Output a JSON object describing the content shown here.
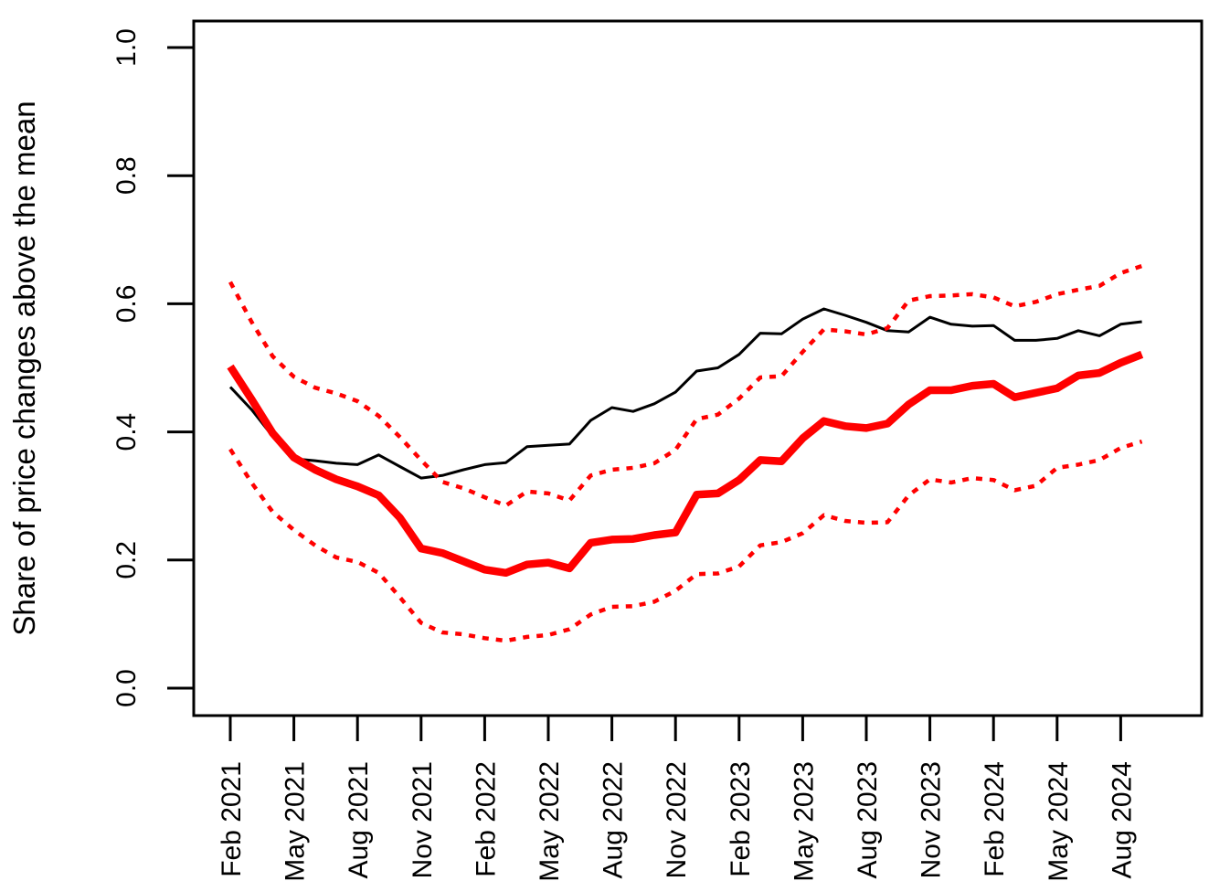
{
  "chart_data": {
    "type": "line",
    "title": "",
    "xlabel": "",
    "ylabel": "Share of price changes above the mean",
    "ylim": [
      0.0,
      1.0
    ],
    "grid": false,
    "legend": "none",
    "background_color": "#ffffff",
    "axis_color": "#000000",
    "x": [
      "Feb 2021",
      "Mar 2021",
      "Apr 2021",
      "May 2021",
      "Jun 2021",
      "Jul 2021",
      "Aug 2021",
      "Sep 2021",
      "Oct 2021",
      "Nov 2021",
      "Dec 2021",
      "Jan 2022",
      "Feb 2022",
      "Mar 2022",
      "Apr 2022",
      "May 2022",
      "Jun 2022",
      "Jul 2022",
      "Aug 2022",
      "Sep 2022",
      "Oct 2022",
      "Nov 2022",
      "Dec 2022",
      "Jan 2023",
      "Feb 2023",
      "Mar 2023",
      "Apr 2023",
      "May 2023",
      "Jun 2023",
      "Jul 2023",
      "Aug 2023",
      "Sep 2023",
      "Oct 2023",
      "Nov 2023",
      "Dec 2023",
      "Jan 2024",
      "Feb 2024",
      "Mar 2024",
      "Apr 2024",
      "May 2024",
      "Jun 2024",
      "Jul 2024",
      "Aug 2024",
      "Sep 2024"
    ],
    "x_tick_labels": [
      "Feb 2021",
      "May 2021",
      "Aug 2021",
      "Nov 2021",
      "Feb 2022",
      "May 2022",
      "Aug 2022",
      "Nov 2022",
      "Feb 2023",
      "May 2023",
      "Aug 2023",
      "Nov 2023",
      "Feb 2024",
      "May 2024",
      "Aug 2024"
    ],
    "x_tick_indices": [
      0,
      3,
      6,
      9,
      12,
      15,
      18,
      21,
      24,
      27,
      30,
      33,
      36,
      39,
      42
    ],
    "y_ticks": [
      {
        "value": 0.0,
        "label": "0.0"
      },
      {
        "value": 0.2,
        "label": "0.2"
      },
      {
        "value": 0.4,
        "label": "0.4"
      },
      {
        "value": 0.6,
        "label": "0.6"
      },
      {
        "value": 0.8,
        "label": "0.8"
      },
      {
        "value": 1.0,
        "label": "1.0"
      }
    ],
    "series": [
      {
        "name": "black solid line",
        "color": "#000000",
        "style": "solid",
        "width": 3,
        "values": [
          0.47,
          0.435,
          0.393,
          0.358,
          0.355,
          0.351,
          0.349,
          0.364,
          0.346,
          0.328,
          0.332,
          0.341,
          0.349,
          0.352,
          0.377,
          0.379,
          0.381,
          0.418,
          0.438,
          0.432,
          0.444,
          0.462,
          0.495,
          0.5,
          0.521,
          0.554,
          0.553,
          0.576,
          0.592,
          0.582,
          0.571,
          0.558,
          0.556,
          0.579,
          0.568,
          0.565,
          0.566,
          0.543,
          0.543,
          0.546,
          0.558,
          0.55,
          0.568,
          0.572
        ]
      },
      {
        "name": "upper dotted red band",
        "color": "#ff0000",
        "style": "dotted",
        "width": 4.5,
        "values": [
          0.634,
          0.572,
          0.518,
          0.486,
          0.469,
          0.46,
          0.448,
          0.425,
          0.392,
          0.356,
          0.322,
          0.312,
          0.298,
          0.285,
          0.307,
          0.304,
          0.293,
          0.332,
          0.341,
          0.344,
          0.351,
          0.372,
          0.42,
          0.427,
          0.452,
          0.485,
          0.487,
          0.525,
          0.56,
          0.557,
          0.552,
          0.562,
          0.605,
          0.612,
          0.613,
          0.615,
          0.61,
          0.596,
          0.603,
          0.615,
          0.622,
          0.628,
          0.648,
          0.659
        ]
      },
      {
        "name": "lower dotted red band",
        "color": "#ff0000",
        "style": "dotted",
        "width": 4.5,
        "values": [
          0.373,
          0.321,
          0.275,
          0.247,
          0.223,
          0.204,
          0.197,
          0.18,
          0.142,
          0.102,
          0.087,
          0.084,
          0.078,
          0.074,
          0.08,
          0.083,
          0.092,
          0.115,
          0.127,
          0.128,
          0.135,
          0.152,
          0.178,
          0.179,
          0.19,
          0.223,
          0.228,
          0.242,
          0.27,
          0.261,
          0.258,
          0.259,
          0.301,
          0.326,
          0.321,
          0.328,
          0.325,
          0.309,
          0.316,
          0.344,
          0.349,
          0.356,
          0.375,
          0.385
        ]
      },
      {
        "name": "red thick line",
        "color": "#ff0000",
        "style": "solid",
        "width": 8.5,
        "values": [
          0.502,
          0.451,
          0.398,
          0.36,
          0.341,
          0.326,
          0.315,
          0.301,
          0.266,
          0.218,
          0.211,
          0.198,
          0.185,
          0.18,
          0.193,
          0.196,
          0.187,
          0.227,
          0.232,
          0.233,
          0.239,
          0.243,
          0.302,
          0.304,
          0.325,
          0.356,
          0.354,
          0.39,
          0.417,
          0.409,
          0.406,
          0.413,
          0.443,
          0.465,
          0.465,
          0.472,
          0.475,
          0.454,
          0.461,
          0.468,
          0.488,
          0.492,
          0.508,
          0.521
        ]
      }
    ]
  }
}
